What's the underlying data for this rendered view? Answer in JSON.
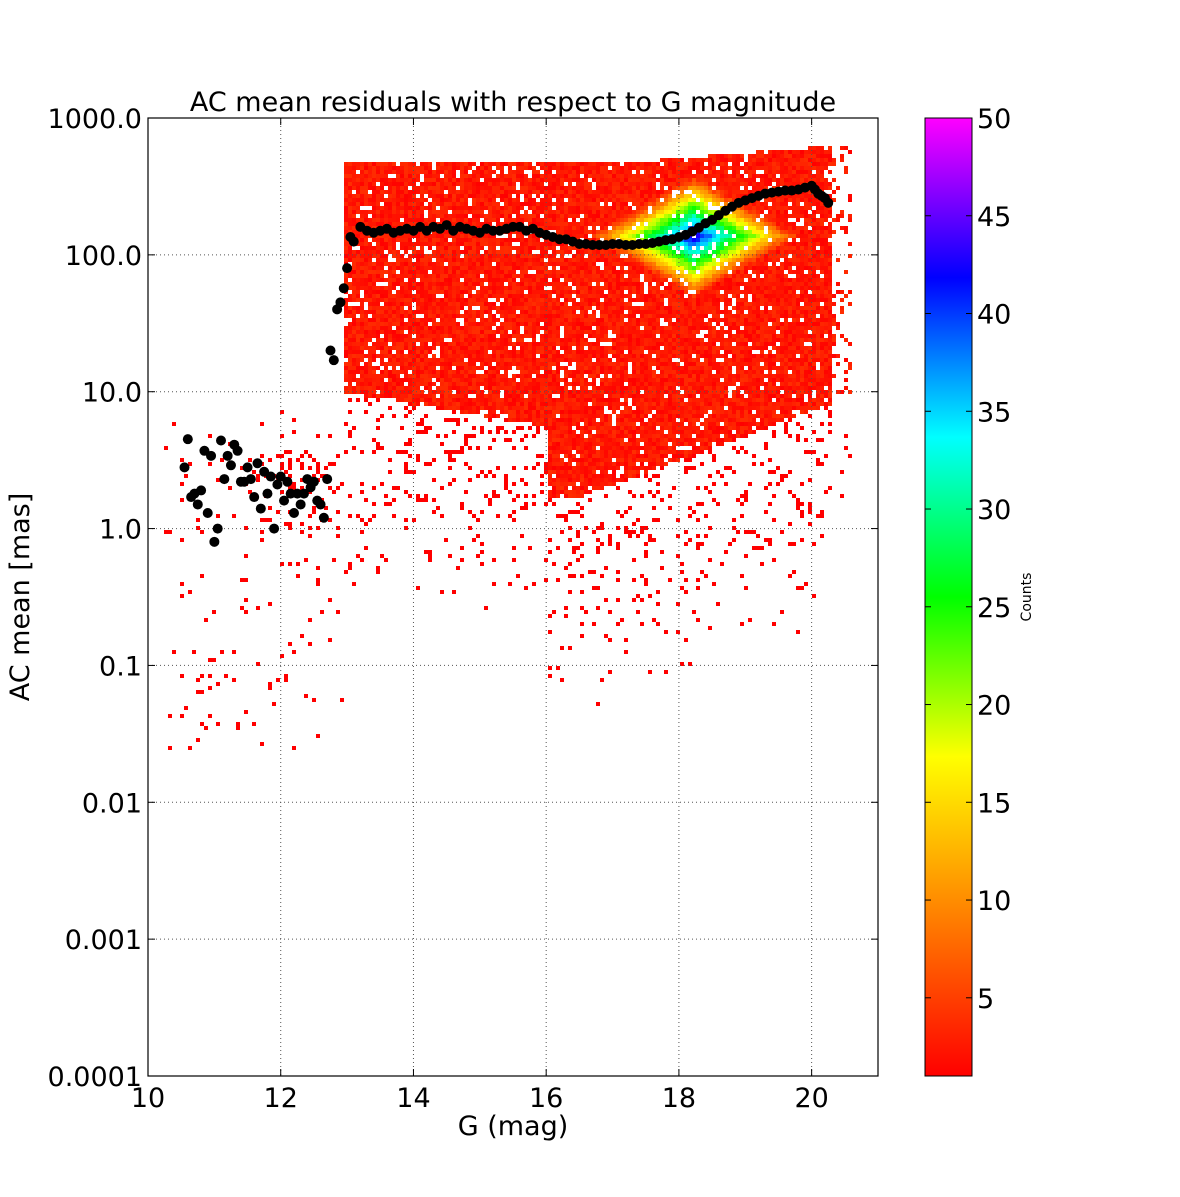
{
  "chart_data": {
    "type": "scatter",
    "title": "AC mean residuals with respect to G magnitude",
    "xlabel": "G (mag)",
    "ylabel": "AC mean [mas]",
    "xlim": [
      10,
      21
    ],
    "ylim": [
      0.0001,
      1000
    ],
    "yscale": "log",
    "grid": true,
    "x_ticks": [
      10,
      12,
      14,
      16,
      18,
      20
    ],
    "x_tick_labels": [
      "10",
      "12",
      "14",
      "16",
      "18",
      "20"
    ],
    "y_ticks": [
      0.0001,
      0.001,
      0.01,
      0.1,
      1,
      10,
      100,
      1000
    ],
    "y_tick_labels": [
      "0.0001",
      "0.001",
      "0.01",
      "0.1",
      "1.0",
      "10.0",
      "100.0",
      "1000.0"
    ],
    "colorbar": {
      "label": "Counts",
      "range": [
        1,
        50
      ],
      "ticks": [
        5,
        10,
        15,
        20,
        25,
        30,
        35,
        40,
        45,
        50
      ],
      "tick_labels": [
        "5",
        "10",
        "15",
        "20",
        "25",
        "30",
        "35",
        "40",
        "45",
        "50"
      ],
      "colormap": [
        "#ff0000",
        "#ff8000",
        "#ffff00",
        "#00ff00",
        "#00ffff",
        "#0000ff",
        "#ff00ff"
      ]
    },
    "density_description": "2D histogram density of residuals; sparse for G<13, dense band ~2-500 mas for 13<G<20.5, peak density near G=18, AC~150 mas",
    "mean_series": {
      "name": "binned mean",
      "color": "#000000",
      "x": [
        10.55,
        10.6,
        10.65,
        10.7,
        10.75,
        10.8,
        10.85,
        10.9,
        10.95,
        11.0,
        11.05,
        11.1,
        11.15,
        11.2,
        11.25,
        11.3,
        11.35,
        11.4,
        11.45,
        11.5,
        11.55,
        11.6,
        11.65,
        11.7,
        11.75,
        11.8,
        11.85,
        11.9,
        11.95,
        12.0,
        12.05,
        12.1,
        12.15,
        12.2,
        12.25,
        12.3,
        12.35,
        12.4,
        12.45,
        12.5,
        12.55,
        12.6,
        12.65,
        12.7,
        12.75,
        12.8,
        12.85,
        12.9,
        12.95,
        13.0,
        13.05,
        13.1,
        13.2,
        13.3,
        13.4,
        13.5,
        13.6,
        13.7,
        13.8,
        13.9,
        14.0,
        14.1,
        14.2,
        14.3,
        14.4,
        14.5,
        14.6,
        14.7,
        14.8,
        14.9,
        15.0,
        15.1,
        15.2,
        15.3,
        15.4,
        15.5,
        15.6,
        15.7,
        15.8,
        15.9,
        16.0,
        16.1,
        16.2,
        16.3,
        16.4,
        16.5,
        16.6,
        16.7,
        16.8,
        16.9,
        17.0,
        17.1,
        17.2,
        17.3,
        17.4,
        17.5,
        17.6,
        17.7,
        17.8,
        17.9,
        18.0,
        18.1,
        18.2,
        18.3,
        18.4,
        18.5,
        18.6,
        18.7,
        18.8,
        18.9,
        19.0,
        19.1,
        19.2,
        19.3,
        19.4,
        19.5,
        19.6,
        19.7,
        19.8,
        19.9,
        20.0,
        20.05,
        20.1,
        20.15,
        20.2,
        20.25
      ],
      "y": [
        2.8,
        4.5,
        1.7,
        1.8,
        1.5,
        1.9,
        3.7,
        1.3,
        3.4,
        0.8,
        1.0,
        4.4,
        2.3,
        3.4,
        2.9,
        4.1,
        3.7,
        2.2,
        2.2,
        2.8,
        2.3,
        1.7,
        3.0,
        1.4,
        2.6,
        1.8,
        2.4,
        1.0,
        2.1,
        2.4,
        1.6,
        2.2,
        1.8,
        1.3,
        1.8,
        1.5,
        1.8,
        2.3,
        2.0,
        2.2,
        1.6,
        1.5,
        1.2,
        2.3,
        20,
        17,
        40,
        45,
        57,
        80,
        135,
        125,
        160,
        150,
        145,
        150,
        155,
        145,
        150,
        155,
        150,
        160,
        150,
        160,
        155,
        165,
        150,
        160,
        155,
        150,
        145,
        155,
        150,
        150,
        155,
        160,
        160,
        150,
        155,
        145,
        140,
        135,
        130,
        130,
        125,
        120,
        120,
        118,
        118,
        118,
        120,
        120,
        118,
        118,
        120,
        120,
        122,
        125,
        128,
        130,
        135,
        140,
        148,
        158,
        170,
        180,
        195,
        210,
        225,
        240,
        250,
        260,
        270,
        280,
        285,
        290,
        295,
        295,
        300,
        310,
        320,
        300,
        280,
        270,
        260,
        240
      ]
    }
  }
}
